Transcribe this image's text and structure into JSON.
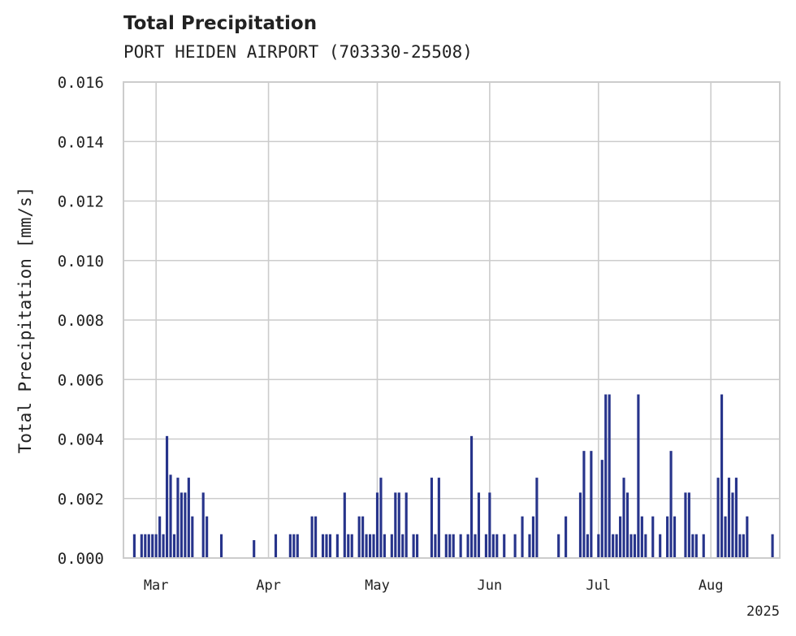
{
  "chart_data": {
    "type": "bar",
    "title": "Total Precipitation",
    "subtitle": "PORT HEIDEN AIRPORT (703330-25508)",
    "ylabel": "Total Precipitation [mm/s]",
    "xlabel": "",
    "year_label": "2025",
    "ylim": [
      0,
      0.016
    ],
    "xlim": [
      "2025-02-20",
      "2025-08-20"
    ],
    "yticks": [
      "0.000",
      "0.002",
      "0.004",
      "0.006",
      "0.008",
      "0.010",
      "0.012",
      "0.014",
      "0.016"
    ],
    "xticks": [
      {
        "date": "2025-03-01",
        "label": "Mar"
      },
      {
        "date": "2025-04-01",
        "label": "Apr"
      },
      {
        "date": "2025-05-01",
        "label": "May"
      },
      {
        "date": "2025-06-01",
        "label": "Jun"
      },
      {
        "date": "2025-07-01",
        "label": "Jul"
      },
      {
        "date": "2025-08-01",
        "label": "Aug"
      }
    ],
    "grid": true,
    "bar_color": "#27348b",
    "points": [
      [
        "2025-02-23",
        0.0008
      ],
      [
        "2025-02-25",
        0.0008
      ],
      [
        "2025-02-26",
        0.0008
      ],
      [
        "2025-02-27",
        0.0008
      ],
      [
        "2025-02-28",
        0.0008
      ],
      [
        "2025-03-01",
        0.0008
      ],
      [
        "2025-03-02",
        0.0014
      ],
      [
        "2025-03-03",
        0.0008
      ],
      [
        "2025-03-04",
        0.0041
      ],
      [
        "2025-03-05",
        0.0028
      ],
      [
        "2025-03-06",
        0.0008
      ],
      [
        "2025-03-07",
        0.0027
      ],
      [
        "2025-03-08",
        0.0022
      ],
      [
        "2025-03-09",
        0.0022
      ],
      [
        "2025-03-10",
        0.0027
      ],
      [
        "2025-03-11",
        0.0014
      ],
      [
        "2025-03-14",
        0.0022
      ],
      [
        "2025-03-15",
        0.0014
      ],
      [
        "2025-03-19",
        0.0008
      ],
      [
        "2025-03-28",
        0.0006
      ],
      [
        "2025-04-03",
        0.0008
      ],
      [
        "2025-04-07",
        0.0008
      ],
      [
        "2025-04-08",
        0.0008
      ],
      [
        "2025-04-09",
        0.0008
      ],
      [
        "2025-04-13",
        0.0014
      ],
      [
        "2025-04-14",
        0.0014
      ],
      [
        "2025-04-16",
        0.0008
      ],
      [
        "2025-04-17",
        0.0008
      ],
      [
        "2025-04-18",
        0.0008
      ],
      [
        "2025-04-20",
        0.0008
      ],
      [
        "2025-04-22",
        0.0022
      ],
      [
        "2025-04-23",
        0.0008
      ],
      [
        "2025-04-24",
        0.0008
      ],
      [
        "2025-04-26",
        0.0014
      ],
      [
        "2025-04-27",
        0.0014
      ],
      [
        "2025-04-28",
        0.0008
      ],
      [
        "2025-04-29",
        0.0008
      ],
      [
        "2025-04-30",
        0.0008
      ],
      [
        "2025-05-01",
        0.0022
      ],
      [
        "2025-05-02",
        0.0027
      ],
      [
        "2025-05-03",
        0.0008
      ],
      [
        "2025-05-05",
        0.0008
      ],
      [
        "2025-05-06",
        0.0022
      ],
      [
        "2025-05-07",
        0.0022
      ],
      [
        "2025-05-08",
        0.0008
      ],
      [
        "2025-05-09",
        0.0022
      ],
      [
        "2025-05-11",
        0.0008
      ],
      [
        "2025-05-12",
        0.0008
      ],
      [
        "2025-05-16",
        0.0027
      ],
      [
        "2025-05-17",
        0.0008
      ],
      [
        "2025-05-18",
        0.0027
      ],
      [
        "2025-05-20",
        0.0008
      ],
      [
        "2025-05-21",
        0.0008
      ],
      [
        "2025-05-22",
        0.0008
      ],
      [
        "2025-05-24",
        0.0008
      ],
      [
        "2025-05-26",
        0.0008
      ],
      [
        "2025-05-27",
        0.0041
      ],
      [
        "2025-05-28",
        0.0008
      ],
      [
        "2025-05-29",
        0.0022
      ],
      [
        "2025-05-31",
        0.0008
      ],
      [
        "2025-06-01",
        0.0022
      ],
      [
        "2025-06-02",
        0.0008
      ],
      [
        "2025-06-03",
        0.0008
      ],
      [
        "2025-06-05",
        0.0008
      ],
      [
        "2025-06-08",
        0.0008
      ],
      [
        "2025-06-10",
        0.0014
      ],
      [
        "2025-06-12",
        0.0008
      ],
      [
        "2025-06-13",
        0.0014
      ],
      [
        "2025-06-14",
        0.0027
      ],
      [
        "2025-06-20",
        0.0008
      ],
      [
        "2025-06-22",
        0.0014
      ],
      [
        "2025-06-26",
        0.0022
      ],
      [
        "2025-06-27",
        0.0036
      ],
      [
        "2025-06-28",
        0.0008
      ],
      [
        "2025-06-29",
        0.0036
      ],
      [
        "2025-07-01",
        0.0008
      ],
      [
        "2025-07-02",
        0.0033
      ],
      [
        "2025-07-03",
        0.0055
      ],
      [
        "2025-07-04",
        0.0055
      ],
      [
        "2025-07-05",
        0.0008
      ],
      [
        "2025-07-06",
        0.0008
      ],
      [
        "2025-07-07",
        0.0014
      ],
      [
        "2025-07-08",
        0.0027
      ],
      [
        "2025-07-09",
        0.0022
      ],
      [
        "2025-07-10",
        0.0008
      ],
      [
        "2025-07-11",
        0.0008
      ],
      [
        "2025-07-12",
        0.0055
      ],
      [
        "2025-07-13",
        0.0014
      ],
      [
        "2025-07-14",
        0.0008
      ],
      [
        "2025-07-16",
        0.0014
      ],
      [
        "2025-07-18",
        0.0008
      ],
      [
        "2025-07-20",
        0.0014
      ],
      [
        "2025-07-21",
        0.0036
      ],
      [
        "2025-07-22",
        0.0014
      ],
      [
        "2025-07-25",
        0.0022
      ],
      [
        "2025-07-26",
        0.0022
      ],
      [
        "2025-07-27",
        0.0008
      ],
      [
        "2025-07-28",
        0.0008
      ],
      [
        "2025-07-30",
        0.0008
      ],
      [
        "2025-08-03",
        0.0027
      ],
      [
        "2025-08-04",
        0.0055
      ],
      [
        "2025-08-05",
        0.0014
      ],
      [
        "2025-08-06",
        0.0027
      ],
      [
        "2025-08-07",
        0.0022
      ],
      [
        "2025-08-08",
        0.0027
      ],
      [
        "2025-08-09",
        0.0008
      ],
      [
        "2025-08-10",
        0.0008
      ],
      [
        "2025-08-11",
        0.0014
      ],
      [
        "2025-08-18",
        0.0008
      ]
    ]
  }
}
